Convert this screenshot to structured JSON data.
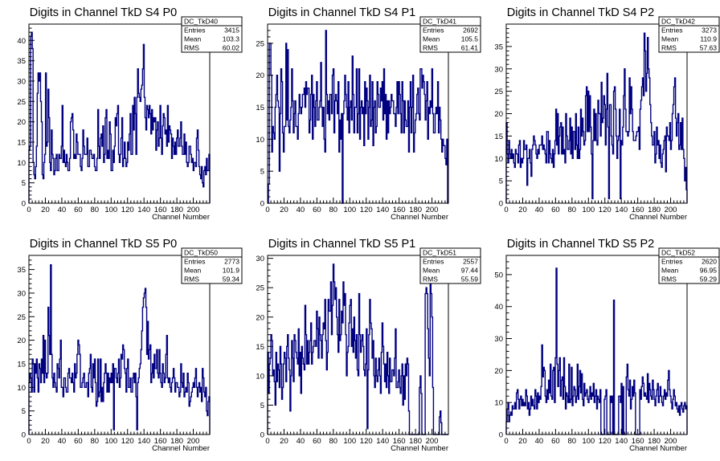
{
  "chart_data": [
    {
      "type": "bar",
      "title": "Digits in Channel TkD S4 P0",
      "xlabel": "Channel Number",
      "ylabel": "",
      "xlim": [
        0,
        220
      ],
      "ylim": [
        0,
        44
      ],
      "x_ticks": [
        0,
        20,
        40,
        60,
        80,
        100,
        120,
        140,
        160,
        180,
        200
      ],
      "y_ticks": [
        0,
        5,
        10,
        15,
        20,
        25,
        30,
        35,
        40
      ],
      "color": "#000080",
      "stats": {
        "name": "DC_TkD40",
        "entries": "3415",
        "mean": "103.3",
        "rms": "60.02"
      },
      "values": [
        13,
        14,
        41,
        42,
        38,
        10,
        7,
        6,
        9,
        14,
        27,
        32,
        30,
        32,
        25,
        20,
        7,
        6,
        10,
        12,
        32,
        14,
        15,
        28,
        21,
        10,
        8,
        18,
        12,
        11,
        7,
        8,
        11,
        12,
        8,
        8,
        12,
        11,
        11,
        14,
        24,
        10,
        13,
        10,
        9,
        12,
        10,
        8,
        8,
        11,
        20,
        21,
        22,
        18,
        11,
        12,
        11,
        17,
        15,
        12,
        12,
        12,
        9,
        8,
        11,
        18,
        14,
        12,
        12,
        12,
        16,
        9,
        9,
        13,
        13,
        12,
        11,
        11,
        12,
        9,
        8,
        8,
        11,
        23,
        14,
        11,
        16,
        17,
        14,
        19,
        10,
        12,
        21,
        23,
        11,
        13,
        11,
        20,
        17,
        8,
        8,
        13,
        10,
        14,
        21,
        19,
        22,
        24,
        12,
        10,
        12,
        16,
        21,
        9,
        11,
        15,
        11,
        9,
        10,
        15,
        13,
        17,
        22,
        12,
        12,
        24,
        18,
        26,
        22,
        12,
        26,
        33,
        27,
        26,
        25,
        28,
        29,
        33,
        39,
        26,
        21,
        18,
        24,
        23,
        21,
        24,
        22,
        17,
        23,
        18,
        21,
        20,
        21,
        13,
        18,
        20,
        14,
        16,
        24,
        16,
        12,
        19,
        22,
        21,
        17,
        18,
        14,
        24,
        15,
        19,
        18,
        17,
        11,
        16,
        14,
        12,
        15,
        12,
        16,
        18,
        14,
        14,
        16,
        20,
        14,
        12,
        12,
        17,
        12,
        15,
        10,
        9,
        10,
        14,
        14,
        12,
        10,
        11,
        8,
        10,
        10,
        9,
        16,
        18,
        13,
        9,
        7,
        6,
        9,
        5,
        4,
        8,
        9,
        7,
        11,
        8,
        8,
        12
      ]
    },
    {
      "type": "bar",
      "title": "Digits in Channel TkD S4 P1",
      "xlabel": "Channel Number",
      "ylabel": "",
      "xlim": [
        0,
        220
      ],
      "ylim": [
        0,
        28
      ],
      "x_ticks": [
        0,
        20,
        40,
        60,
        80,
        100,
        120,
        140,
        160,
        180,
        200
      ],
      "y_ticks": [
        0,
        5,
        10,
        15,
        20,
        25
      ],
      "color": "#000080",
      "stats": {
        "name": "DC_TkD41",
        "entries": "2692",
        "mean": "105.5",
        "rms": "61.41"
      },
      "values": [
        0,
        3,
        25,
        25,
        20,
        8,
        12,
        11,
        10,
        15,
        17,
        20,
        16,
        15,
        5,
        14,
        21,
        19,
        11,
        8,
        12,
        12,
        25,
        13,
        24,
        12,
        11,
        13,
        15,
        21,
        16,
        11,
        14,
        16,
        12,
        12,
        10,
        14,
        17,
        15,
        14,
        15,
        17,
        17,
        18,
        15,
        19,
        17,
        18,
        18,
        11,
        13,
        17,
        20,
        10,
        17,
        15,
        12,
        16,
        19,
        13,
        13,
        15,
        16,
        22,
        15,
        12,
        15,
        10,
        8,
        27,
        17,
        14,
        16,
        13,
        17,
        17,
        14,
        20,
        21,
        11,
        16,
        17,
        16,
        14,
        19,
        8,
        13,
        10,
        14,
        0,
        14,
        16,
        20,
        17,
        15,
        13,
        19,
        11,
        15,
        16,
        13,
        23,
        17,
        11,
        15,
        15,
        21,
        11,
        14,
        21,
        10,
        15,
        16,
        14,
        15,
        9,
        19,
        14,
        18,
        16,
        10,
        15,
        20,
        12,
        13,
        19,
        9,
        15,
        16,
        11,
        12,
        19,
        17,
        15,
        15,
        18,
        16,
        19,
        13,
        21,
        14,
        17,
        10,
        16,
        11,
        16,
        14,
        15,
        17,
        16,
        16,
        14,
        14,
        12,
        15,
        19,
        14,
        19,
        17,
        14,
        11,
        19,
        16,
        11,
        16,
        13,
        12,
        12,
        16,
        8,
        15,
        19,
        11,
        15,
        20,
        8,
        11,
        13,
        14,
        17,
        18,
        14,
        13,
        21,
        21,
        18,
        20,
        19,
        17,
        13,
        16,
        19,
        10,
        15,
        14,
        16,
        15,
        21,
        14,
        11,
        11,
        14,
        15,
        14,
        19,
        11,
        15,
        13,
        10,
        8,
        10,
        9,
        9,
        7,
        6,
        10,
        0
      ]
    },
    {
      "type": "bar",
      "title": "Digits in Channel TkD S4 P2",
      "xlabel": "Channel Number",
      "ylabel": "",
      "xlim": [
        0,
        220
      ],
      "ylim": [
        0,
        40
      ],
      "x_ticks": [
        0,
        20,
        40,
        60,
        80,
        100,
        120,
        140,
        160,
        180,
        200
      ],
      "y_ticks": [
        0,
        5,
        10,
        15,
        20,
        25,
        30,
        35
      ],
      "color": "#000080",
      "stats": {
        "name": "DC_TkD42",
        "entries": "3273",
        "mean": "110.9",
        "rms": "57.63"
      },
      "values": [
        18,
        11,
        9,
        14,
        11,
        10,
        12,
        10,
        11,
        9,
        8,
        12,
        11,
        11,
        9,
        13,
        14,
        8,
        10,
        9,
        10,
        14,
        12,
        12,
        13,
        4,
        10,
        10,
        12,
        9,
        6,
        12,
        13,
        15,
        14,
        13,
        11,
        10,
        12,
        11,
        13,
        13,
        13,
        15,
        12,
        13,
        12,
        11,
        9,
        16,
        16,
        9,
        14,
        11,
        10,
        9,
        12,
        8,
        11,
        14,
        21,
        13,
        20,
        11,
        15,
        17,
        18,
        11,
        17,
        11,
        12,
        9,
        20,
        15,
        12,
        12,
        14,
        19,
        11,
        17,
        10,
        16,
        16,
        12,
        20,
        13,
        10,
        17,
        10,
        12,
        21,
        15,
        19,
        16,
        13,
        14,
        24,
        26,
        16,
        25,
        16,
        24,
        17,
        11,
        1,
        14,
        21,
        14,
        20,
        14,
        13,
        23,
        20,
        20,
        15,
        27,
        18,
        19,
        24,
        22,
        13,
        21,
        29,
        17,
        1,
        22,
        22,
        15,
        13,
        11,
        25,
        26,
        21,
        15,
        10,
        14,
        15,
        21,
        1,
        14,
        13,
        17,
        24,
        30,
        21,
        16,
        16,
        15,
        16,
        28,
        20,
        26,
        21,
        16,
        14,
        14,
        14,
        15,
        16,
        16,
        17,
        12,
        21,
        23,
        26,
        28,
        24,
        38,
        34,
        25,
        29,
        37,
        30,
        28,
        22,
        18,
        15,
        13,
        13,
        16,
        9,
        11,
        17,
        13,
        14,
        10,
        13,
        9,
        8,
        11,
        12,
        14,
        15,
        7,
        17,
        15,
        15,
        14,
        18,
        12,
        14,
        20,
        22,
        26,
        28,
        19,
        15,
        18,
        20,
        12,
        13,
        18,
        12,
        19,
        12,
        10,
        5,
        8,
        3
      ]
    },
    {
      "type": "bar",
      "title": "Digits in Channel TkD S5 P0",
      "xlabel": "Channel Number",
      "ylabel": "",
      "xlim": [
        0,
        220
      ],
      "ylim": [
        0,
        38
      ],
      "x_ticks": [
        0,
        20,
        40,
        60,
        80,
        100,
        120,
        140,
        160,
        180,
        200
      ],
      "y_ticks": [
        0,
        5,
        10,
        15,
        20,
        25,
        30,
        35
      ],
      "color": "#000080",
      "stats": {
        "name": "DC_TkD50",
        "entries": "2773",
        "mean": "101.9",
        "rms": "59.34"
      },
      "values": [
        11,
        13,
        12,
        9,
        16,
        15,
        9,
        15,
        13,
        16,
        12,
        9,
        15,
        14,
        11,
        16,
        13,
        21,
        11,
        20,
        13,
        12,
        13,
        27,
        21,
        17,
        36,
        17,
        12,
        10,
        13,
        11,
        10,
        9,
        15,
        14,
        12,
        16,
        20,
        10,
        10,
        8,
        12,
        12,
        10,
        9,
        9,
        13,
        14,
        12,
        12,
        11,
        13,
        11,
        9,
        15,
        12,
        13,
        17,
        20,
        19,
        17,
        10,
        10,
        11,
        12,
        13,
        10,
        10,
        11,
        11,
        8,
        13,
        14,
        17,
        10,
        9,
        15,
        12,
        16,
        11,
        6,
        7,
        16,
        8,
        9,
        16,
        7,
        10,
        7,
        11,
        13,
        15,
        13,
        9,
        13,
        9,
        12,
        11,
        13,
        11,
        15,
        1,
        14,
        14,
        12,
        11,
        13,
        16,
        10,
        12,
        17,
        16,
        19,
        18,
        14,
        13,
        9,
        14,
        16,
        10,
        10,
        12,
        9,
        9,
        12,
        13,
        11,
        13,
        8,
        1,
        11,
        12,
        14,
        15,
        18,
        22,
        27,
        29,
        30,
        31,
        27,
        17,
        24,
        16,
        18,
        19,
        11,
        13,
        15,
        12,
        17,
        14,
        14,
        18,
        13,
        12,
        18,
        13,
        11,
        10,
        15,
        13,
        11,
        12,
        17,
        21,
        12,
        11,
        12,
        10,
        9,
        11,
        12,
        14,
        12,
        9,
        11,
        11,
        10,
        10,
        8,
        9,
        15,
        11,
        10,
        13,
        8,
        9,
        10,
        9,
        13,
        11,
        6,
        7,
        8,
        9,
        10,
        11,
        10,
        12,
        14,
        10,
        8,
        10,
        11,
        9,
        10,
        7,
        14,
        12,
        9,
        8,
        10,
        5,
        4,
        7,
        8
      ]
    },
    {
      "type": "bar",
      "title": "Digits in Channel TkD S5 P1",
      "xlabel": "Channel Number",
      "ylabel": "",
      "xlim": [
        0,
        220
      ],
      "ylim": [
        0,
        30.5
      ],
      "x_ticks": [
        0,
        20,
        40,
        60,
        80,
        100,
        120,
        140,
        160,
        180,
        200
      ],
      "y_ticks": [
        0,
        5,
        10,
        15,
        20,
        25,
        30
      ],
      "color": "#000080",
      "stats": {
        "name": "DC_TkD51",
        "entries": "2557",
        "mean": "97.44",
        "rms": "55.59"
      },
      "values": [
        14,
        7,
        12,
        13,
        17,
        16,
        10,
        11,
        9,
        5,
        14,
        9,
        12,
        11,
        8,
        15,
        12,
        6,
        8,
        12,
        14,
        13,
        9,
        15,
        17,
        13,
        11,
        4,
        10,
        16,
        13,
        9,
        17,
        16,
        14,
        13,
        12,
        18,
        10,
        14,
        7,
        15,
        13,
        12,
        11,
        22,
        17,
        12,
        16,
        12,
        14,
        16,
        19,
        12,
        14,
        15,
        16,
        16,
        15,
        21,
        18,
        13,
        20,
        17,
        16,
        13,
        17,
        19,
        18,
        23,
        16,
        11,
        14,
        23,
        21,
        21,
        26,
        17,
        22,
        29,
        26,
        23,
        25,
        20,
        17,
        14,
        23,
        16,
        17,
        21,
        19,
        26,
        22,
        24,
        17,
        10,
        14,
        15,
        19,
        22,
        23,
        15,
        18,
        14,
        20,
        16,
        13,
        17,
        11,
        10,
        24,
        17,
        14,
        16,
        17,
        15,
        11,
        10,
        12,
        18,
        1,
        11,
        17,
        23,
        19,
        18,
        13,
        16,
        10,
        8,
        13,
        10,
        9,
        11,
        13,
        10,
        7,
        14,
        19,
        15,
        12,
        9,
        12,
        8,
        14,
        10,
        7,
        13,
        9,
        9,
        11,
        11,
        10,
        13,
        18,
        8,
        8,
        9,
        11,
        8,
        7,
        10,
        12,
        5,
        10,
        6,
        12,
        10,
        13,
        12,
        4,
        0,
        0,
        0,
        0,
        0,
        0,
        0,
        0,
        0,
        0,
        0,
        0,
        8,
        10,
        7,
        0,
        0,
        0,
        0,
        24,
        25,
        24,
        18,
        13,
        10,
        27,
        24,
        20,
        8,
        0,
        0,
        0,
        0,
        0,
        0,
        0,
        3,
        4,
        2,
        0,
        0,
        0,
        0,
        0,
        0,
        0,
        0
      ]
    },
    {
      "type": "bar",
      "title": "Digits in Channel TkD S5 P2",
      "xlabel": "Channel Number",
      "ylabel": "",
      "xlim": [
        0,
        220
      ],
      "ylim": [
        0,
        56
      ],
      "x_ticks": [
        0,
        20,
        40,
        60,
        80,
        100,
        120,
        140,
        160,
        180,
        200
      ],
      "y_ticks": [
        0,
        10,
        20,
        30,
        40,
        50
      ],
      "color": "#000080",
      "stats": {
        "name": "DC_TkD52",
        "entries": "2620",
        "mean": "96.95",
        "rms": "59.29"
      },
      "values": [
        4,
        8,
        10,
        4,
        6,
        7,
        6,
        9,
        8,
        8,
        10,
        8,
        13,
        14,
        11,
        8,
        11,
        12,
        9,
        11,
        9,
        10,
        9,
        14,
        12,
        8,
        10,
        6,
        8,
        12,
        9,
        11,
        9,
        8,
        14,
        12,
        8,
        13,
        10,
        12,
        11,
        15,
        28,
        18,
        21,
        20,
        12,
        10,
        14,
        11,
        17,
        13,
        22,
        12,
        11,
        20,
        21,
        10,
        24,
        52,
        22,
        15,
        20,
        24,
        12,
        17,
        18,
        11,
        24,
        15,
        8,
        13,
        12,
        10,
        22,
        10,
        11,
        21,
        9,
        12,
        15,
        14,
        10,
        12,
        22,
        11,
        15,
        20,
        13,
        19,
        11,
        9,
        16,
        12,
        13,
        14,
        11,
        10,
        12,
        15,
        11,
        13,
        12,
        16,
        10,
        12,
        14,
        8,
        12,
        11,
        10,
        14,
        0,
        0,
        0,
        0,
        11,
        12,
        14,
        0,
        0,
        0,
        0,
        12,
        10,
        12,
        0,
        42,
        0,
        0,
        0,
        0,
        0,
        12,
        12,
        10,
        16,
        0,
        15,
        0,
        0,
        0,
        18,
        22,
        14,
        12,
        17,
        8,
        11,
        15,
        12,
        17,
        13,
        0,
        0,
        0,
        0,
        0,
        14,
        11,
        15,
        18,
        16,
        12,
        13,
        12,
        11,
        19,
        10,
        16,
        14,
        12,
        11,
        17,
        14,
        11,
        9,
        12,
        14,
        16,
        10,
        12,
        15,
        12,
        10,
        9,
        12,
        14,
        11,
        13,
        12,
        17,
        20,
        14,
        12,
        10,
        8,
        11,
        14,
        12,
        9,
        10,
        8,
        7,
        9,
        6,
        9,
        10,
        8,
        7,
        9,
        10,
        8,
        9
      ]
    }
  ]
}
